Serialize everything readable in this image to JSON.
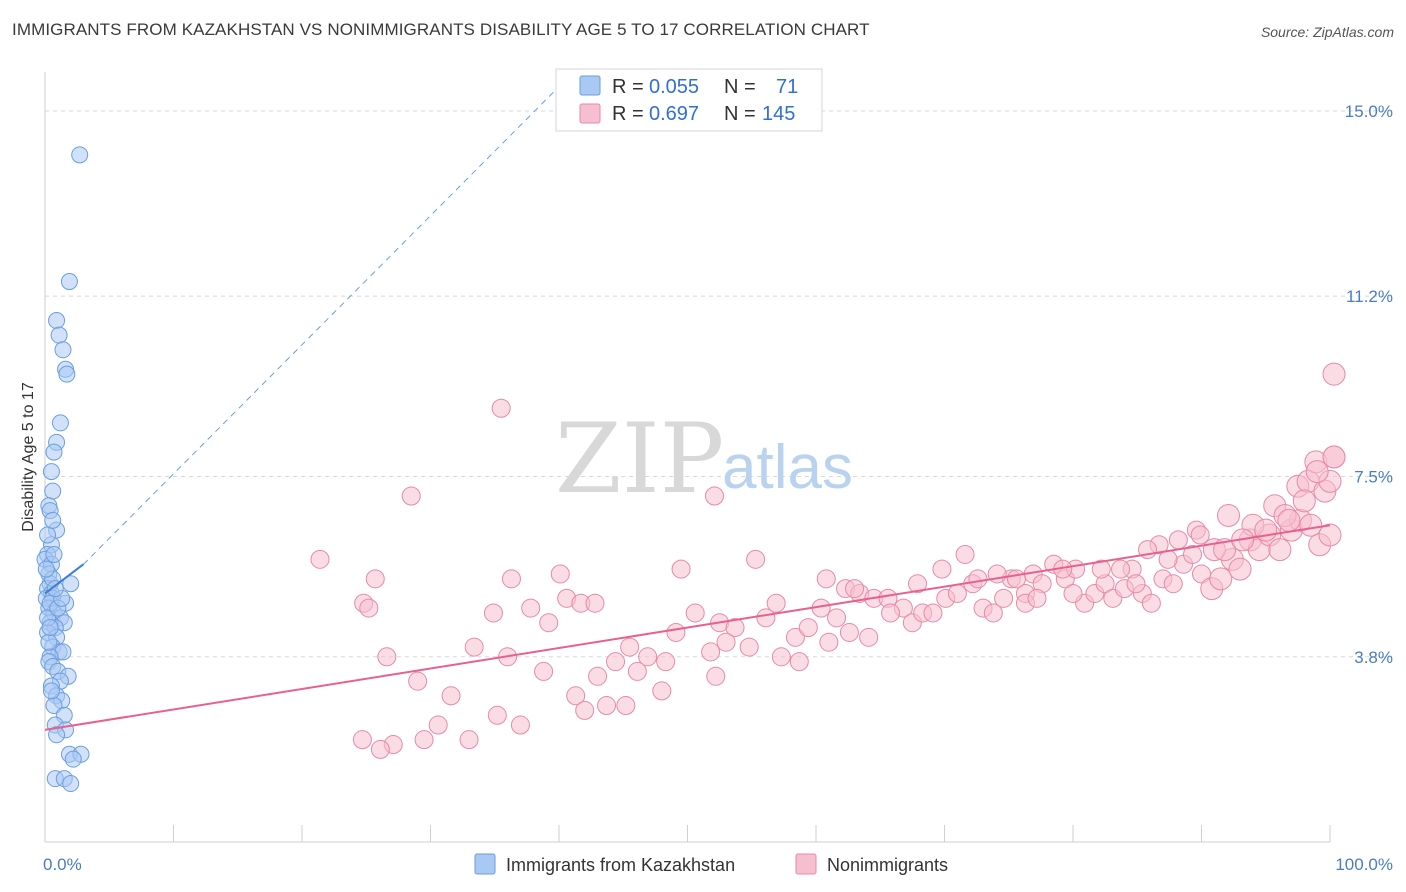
{
  "title": "IMMIGRANTS FROM KAZAKHSTAN VS NONIMMIGRANTS DISABILITY AGE 5 TO 17 CORRELATION CHART",
  "source": "Source: ZipAtlas.com",
  "watermark": {
    "zip": "ZIP",
    "atlas": "atlas"
  },
  "colors": {
    "blue_fill": "#a9c8f2",
    "blue_stroke": "#6b9ee0",
    "blue_line": "#3a7fd5",
    "pink_fill": "#f6bfd0",
    "pink_stroke": "#e889a8",
    "pink_line": "#e8608e",
    "tick_text": "#4a7cc9",
    "grid": "#d8d8d8"
  },
  "legend": {
    "rows": [
      {
        "r_label": "R =",
        "r_value": "0.055",
        "n_label": "N =",
        "n_value": "71"
      },
      {
        "r_label": "R =",
        "r_value": "0.697",
        "n_label": "N =",
        "n_value": "145"
      }
    ]
  },
  "bottom_legend": [
    "Immigrants from Kazakhstan",
    "Nonimmigrants"
  ],
  "chart_data": {
    "type": "scatter",
    "title": "IMMIGRANTS FROM KAZAKHSTAN VS NONIMMIGRANTS DISABILITY AGE 5 TO 17 CORRELATION CHART",
    "xlabel": "",
    "ylabel": "Disability Age 5 to 17",
    "xlim": [
      0,
      100
    ],
    "ylim": [
      0,
      15.8
    ],
    "x_tick_labels": [
      "0.0%",
      "100.0%"
    ],
    "y_ticks": [
      3.8,
      7.5,
      11.2,
      15.0
    ],
    "y_tick_labels": [
      "3.8%",
      "7.5%",
      "11.2%",
      "15.0%"
    ],
    "grid": true,
    "legend_position": "top-center",
    "series": [
      {
        "name": "Immigrants from Kazakhstan",
        "r": 0.055,
        "n": 71,
        "trend": {
          "x": [
            0,
            3.0
          ],
          "y": [
            5.1,
            5.7
          ]
        },
        "trend_extended": {
          "x": [
            3.0,
            40.0
          ],
          "y": [
            5.7,
            15.5
          ]
        },
        "points": [
          [
            2.7,
            14.1
          ],
          [
            1.9,
            11.5
          ],
          [
            0.9,
            10.7
          ],
          [
            1.1,
            10.4
          ],
          [
            1.4,
            10.1
          ],
          [
            1.6,
            9.7
          ],
          [
            1.7,
            9.6
          ],
          [
            1.2,
            8.6
          ],
          [
            0.9,
            8.2
          ],
          [
            0.7,
            8.0
          ],
          [
            0.5,
            7.6
          ],
          [
            0.6,
            7.2
          ],
          [
            0.3,
            6.9
          ],
          [
            0.4,
            6.8
          ],
          [
            0.9,
            6.4
          ],
          [
            0.5,
            6.1
          ],
          [
            0.2,
            5.9
          ],
          [
            0.0,
            5.8
          ],
          [
            0.5,
            5.7
          ],
          [
            0.3,
            5.5
          ],
          [
            0.4,
            5.3
          ],
          [
            2.0,
            5.3
          ],
          [
            0.2,
            5.2
          ],
          [
            0.5,
            5.1
          ],
          [
            0.1,
            5.0
          ],
          [
            0.6,
            5.0
          ],
          [
            1.6,
            4.9
          ],
          [
            0.3,
            4.8
          ],
          [
            0.7,
            4.7
          ],
          [
            1.2,
            4.6
          ],
          [
            1.5,
            4.5
          ],
          [
            0.4,
            4.5
          ],
          [
            0.8,
            4.4
          ],
          [
            0.2,
            4.3
          ],
          [
            0.9,
            4.2
          ],
          [
            0.6,
            4.0
          ],
          [
            1.1,
            3.9
          ],
          [
            1.4,
            3.9
          ],
          [
            0.4,
            3.8
          ],
          [
            0.3,
            3.7
          ],
          [
            0.6,
            3.6
          ],
          [
            1.0,
            3.5
          ],
          [
            1.8,
            3.4
          ],
          [
            1.2,
            3.3
          ],
          [
            0.5,
            3.2
          ],
          [
            0.9,
            3.0
          ],
          [
            1.3,
            2.9
          ],
          [
            0.7,
            2.8
          ],
          [
            1.5,
            2.6
          ],
          [
            0.8,
            2.4
          ],
          [
            1.6,
            2.3
          ],
          [
            0.9,
            2.2
          ],
          [
            1.9,
            1.8
          ],
          [
            2.8,
            1.8
          ],
          [
            2.2,
            1.7
          ],
          [
            0.8,
            1.3
          ],
          [
            1.5,
            1.3
          ],
          [
            2.0,
            1.2
          ],
          [
            0.4,
            4.9
          ],
          [
            0.2,
            4.6
          ],
          [
            0.6,
            5.4
          ],
          [
            0.3,
            4.1
          ],
          [
            1.0,
            4.8
          ],
          [
            0.5,
            3.1
          ],
          [
            0.1,
            5.6
          ],
          [
            0.7,
            5.9
          ],
          [
            0.2,
            6.3
          ],
          [
            1.3,
            5.0
          ],
          [
            0.4,
            4.4
          ],
          [
            0.8,
            5.2
          ],
          [
            0.6,
            6.6
          ]
        ]
      },
      {
        "name": "Nonimmigrants",
        "r": 0.697,
        "n": 145,
        "trend": {
          "x": [
            0,
            100
          ],
          "y": [
            2.3,
            6.5
          ]
        },
        "points": [
          [
            35.5,
            8.9
          ],
          [
            28.5,
            7.1
          ],
          [
            52.1,
            7.1
          ],
          [
            21.4,
            5.8
          ],
          [
            25.7,
            5.4
          ],
          [
            36.3,
            5.4
          ],
          [
            40.1,
            5.5
          ],
          [
            49.5,
            5.6
          ],
          [
            55.3,
            5.8
          ],
          [
            24.8,
            4.9
          ],
          [
            25.2,
            4.8
          ],
          [
            34.9,
            4.7
          ],
          [
            37.8,
            4.8
          ],
          [
            39.2,
            4.5
          ],
          [
            40.6,
            5.0
          ],
          [
            41.7,
            4.9
          ],
          [
            42.8,
            4.9
          ],
          [
            50.6,
            4.7
          ],
          [
            52.5,
            4.5
          ],
          [
            53.7,
            4.4
          ],
          [
            56.1,
            4.6
          ],
          [
            60.8,
            5.4
          ],
          [
            62.3,
            5.2
          ],
          [
            63.4,
            5.1
          ],
          [
            33.4,
            4.0
          ],
          [
            26.6,
            3.8
          ],
          [
            36.0,
            3.8
          ],
          [
            45.5,
            4.0
          ],
          [
            46.9,
            3.8
          ],
          [
            48.3,
            3.7
          ],
          [
            49.1,
            4.3
          ],
          [
            51.8,
            3.9
          ],
          [
            53.0,
            4.1
          ],
          [
            54.8,
            4.0
          ],
          [
            57.3,
            3.8
          ],
          [
            29.0,
            3.3
          ],
          [
            31.6,
            3.0
          ],
          [
            38.8,
            3.5
          ],
          [
            41.3,
            3.0
          ],
          [
            43.0,
            3.4
          ],
          [
            44.4,
            3.7
          ],
          [
            46.1,
            3.5
          ],
          [
            48.0,
            3.1
          ],
          [
            52.2,
            3.4
          ],
          [
            27.1,
            2.0
          ],
          [
            29.5,
            2.1
          ],
          [
            30.6,
            2.4
          ],
          [
            33.0,
            2.1
          ],
          [
            35.2,
            2.6
          ],
          [
            37.0,
            2.4
          ],
          [
            42.0,
            2.7
          ],
          [
            43.7,
            2.8
          ],
          [
            45.2,
            2.8
          ],
          [
            24.7,
            2.1
          ],
          [
            26.1,
            1.9
          ],
          [
            58.4,
            4.2
          ],
          [
            59.4,
            4.4
          ],
          [
            60.4,
            4.8
          ],
          [
            61.6,
            4.6
          ],
          [
            63.0,
            5.2
          ],
          [
            64.5,
            5.0
          ],
          [
            65.6,
            5.0
          ],
          [
            66.8,
            4.8
          ],
          [
            67.5,
            4.5
          ],
          [
            68.3,
            4.7
          ],
          [
            69.1,
            4.7
          ],
          [
            70.1,
            5.0
          ],
          [
            71.0,
            5.1
          ],
          [
            72.2,
            5.3
          ],
          [
            73.0,
            4.8
          ],
          [
            73.8,
            4.7
          ],
          [
            74.6,
            5.0
          ],
          [
            75.2,
            5.4
          ],
          [
            76.3,
            5.1
          ],
          [
            76.9,
            5.5
          ],
          [
            77.6,
            5.3
          ],
          [
            78.5,
            5.7
          ],
          [
            79.4,
            5.4
          ],
          [
            80.2,
            5.6
          ],
          [
            80.9,
            4.9
          ],
          [
            81.7,
            5.1
          ],
          [
            82.5,
            5.3
          ],
          [
            83.1,
            5.0
          ],
          [
            84.0,
            5.2
          ],
          [
            84.6,
            5.6
          ],
          [
            85.4,
            5.1
          ],
          [
            86.1,
            4.9
          ],
          [
            87.0,
            5.4
          ],
          [
            87.8,
            5.3
          ],
          [
            88.6,
            5.7
          ],
          [
            89.3,
            5.9
          ],
          [
            90.0,
            5.5
          ],
          [
            90.8,
            5.2
          ],
          [
            91.5,
            5.4
          ],
          [
            92.4,
            5.8
          ],
          [
            93.0,
            5.6
          ],
          [
            93.8,
            6.2
          ],
          [
            94.5,
            6.0
          ],
          [
            95.3,
            6.3
          ],
          [
            96.1,
            6.0
          ],
          [
            97.0,
            6.4
          ],
          [
            97.7,
            6.6
          ],
          [
            98.5,
            6.5
          ],
          [
            99.2,
            6.1
          ],
          [
            100.0,
            6.3
          ],
          [
            74.1,
            5.5
          ],
          [
            71.6,
            5.9
          ],
          [
            76.3,
            4.9
          ],
          [
            79.2,
            5.6
          ],
          [
            83.7,
            5.6
          ],
          [
            86.7,
            6.1
          ],
          [
            88.2,
            6.2
          ],
          [
            89.6,
            6.4
          ],
          [
            91.0,
            6.0
          ],
          [
            92.1,
            6.7
          ],
          [
            94.0,
            6.5
          ],
          [
            95.7,
            6.9
          ],
          [
            96.5,
            6.7
          ],
          [
            97.5,
            7.3
          ],
          [
            98.3,
            7.4
          ],
          [
            98.9,
            7.8
          ],
          [
            99.6,
            7.2
          ],
          [
            100.0,
            7.4
          ],
          [
            101.0,
            7.9
          ],
          [
            102.2,
            9.6
          ],
          [
            58.7,
            3.7
          ],
          [
            61.0,
            4.1
          ],
          [
            62.6,
            4.3
          ],
          [
            64.1,
            4.2
          ],
          [
            65.8,
            4.7
          ],
          [
            67.9,
            5.3
          ],
          [
            69.8,
            5.6
          ],
          [
            72.6,
            5.4
          ],
          [
            75.6,
            5.4
          ],
          [
            77.2,
            5.0
          ],
          [
            80.0,
            5.1
          ],
          [
            82.2,
            5.6
          ],
          [
            84.9,
            5.3
          ],
          [
            85.8,
            6.0
          ],
          [
            87.4,
            5.8
          ],
          [
            89.9,
            6.3
          ],
          [
            91.8,
            6.0
          ],
          [
            93.2,
            6.2
          ],
          [
            95.0,
            6.4
          ],
          [
            96.8,
            6.6
          ],
          [
            98.0,
            7.0
          ],
          [
            99.0,
            7.6
          ],
          [
            100.6,
            7.9
          ],
          [
            56.9,
            4.9
          ]
        ]
      }
    ]
  }
}
